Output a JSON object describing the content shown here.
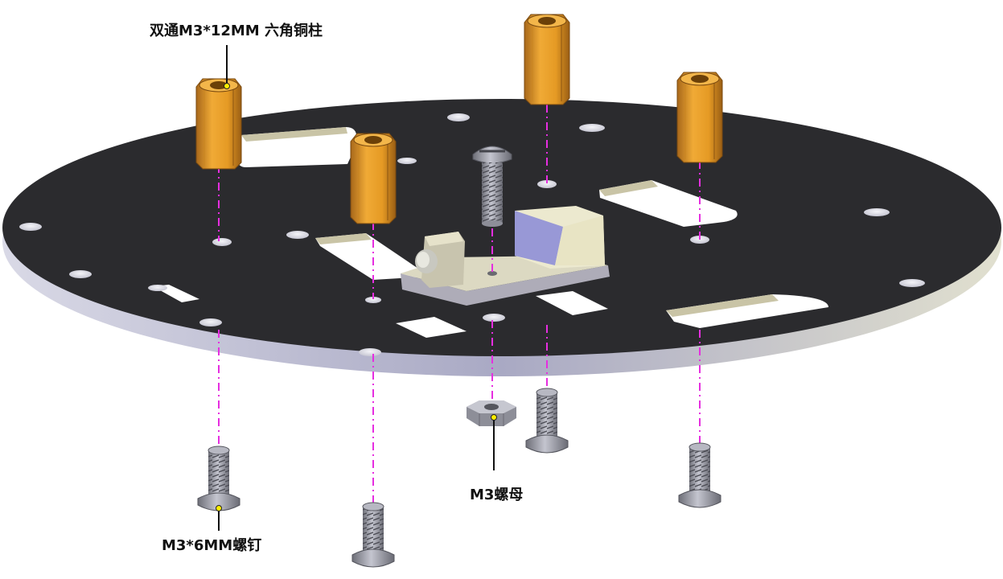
{
  "labels": {
    "standoff": "双通M3*12MM 六角铜柱",
    "screw": "M3*6MM螺钉",
    "nut": "M3螺母"
  },
  "colors": {
    "plate_top": "#2b2b2e",
    "plate_edge": "#c9c9dd",
    "brass": "#e9a22e",
    "steel": "#9c9da8",
    "guide_line": "#e62ee0",
    "leader_dot": "#ffee00",
    "bracket": "#e3e0c0"
  },
  "icons": [
    "standoff-icon",
    "screw-icon",
    "nut-icon",
    "sensor-bracket-icon"
  ]
}
